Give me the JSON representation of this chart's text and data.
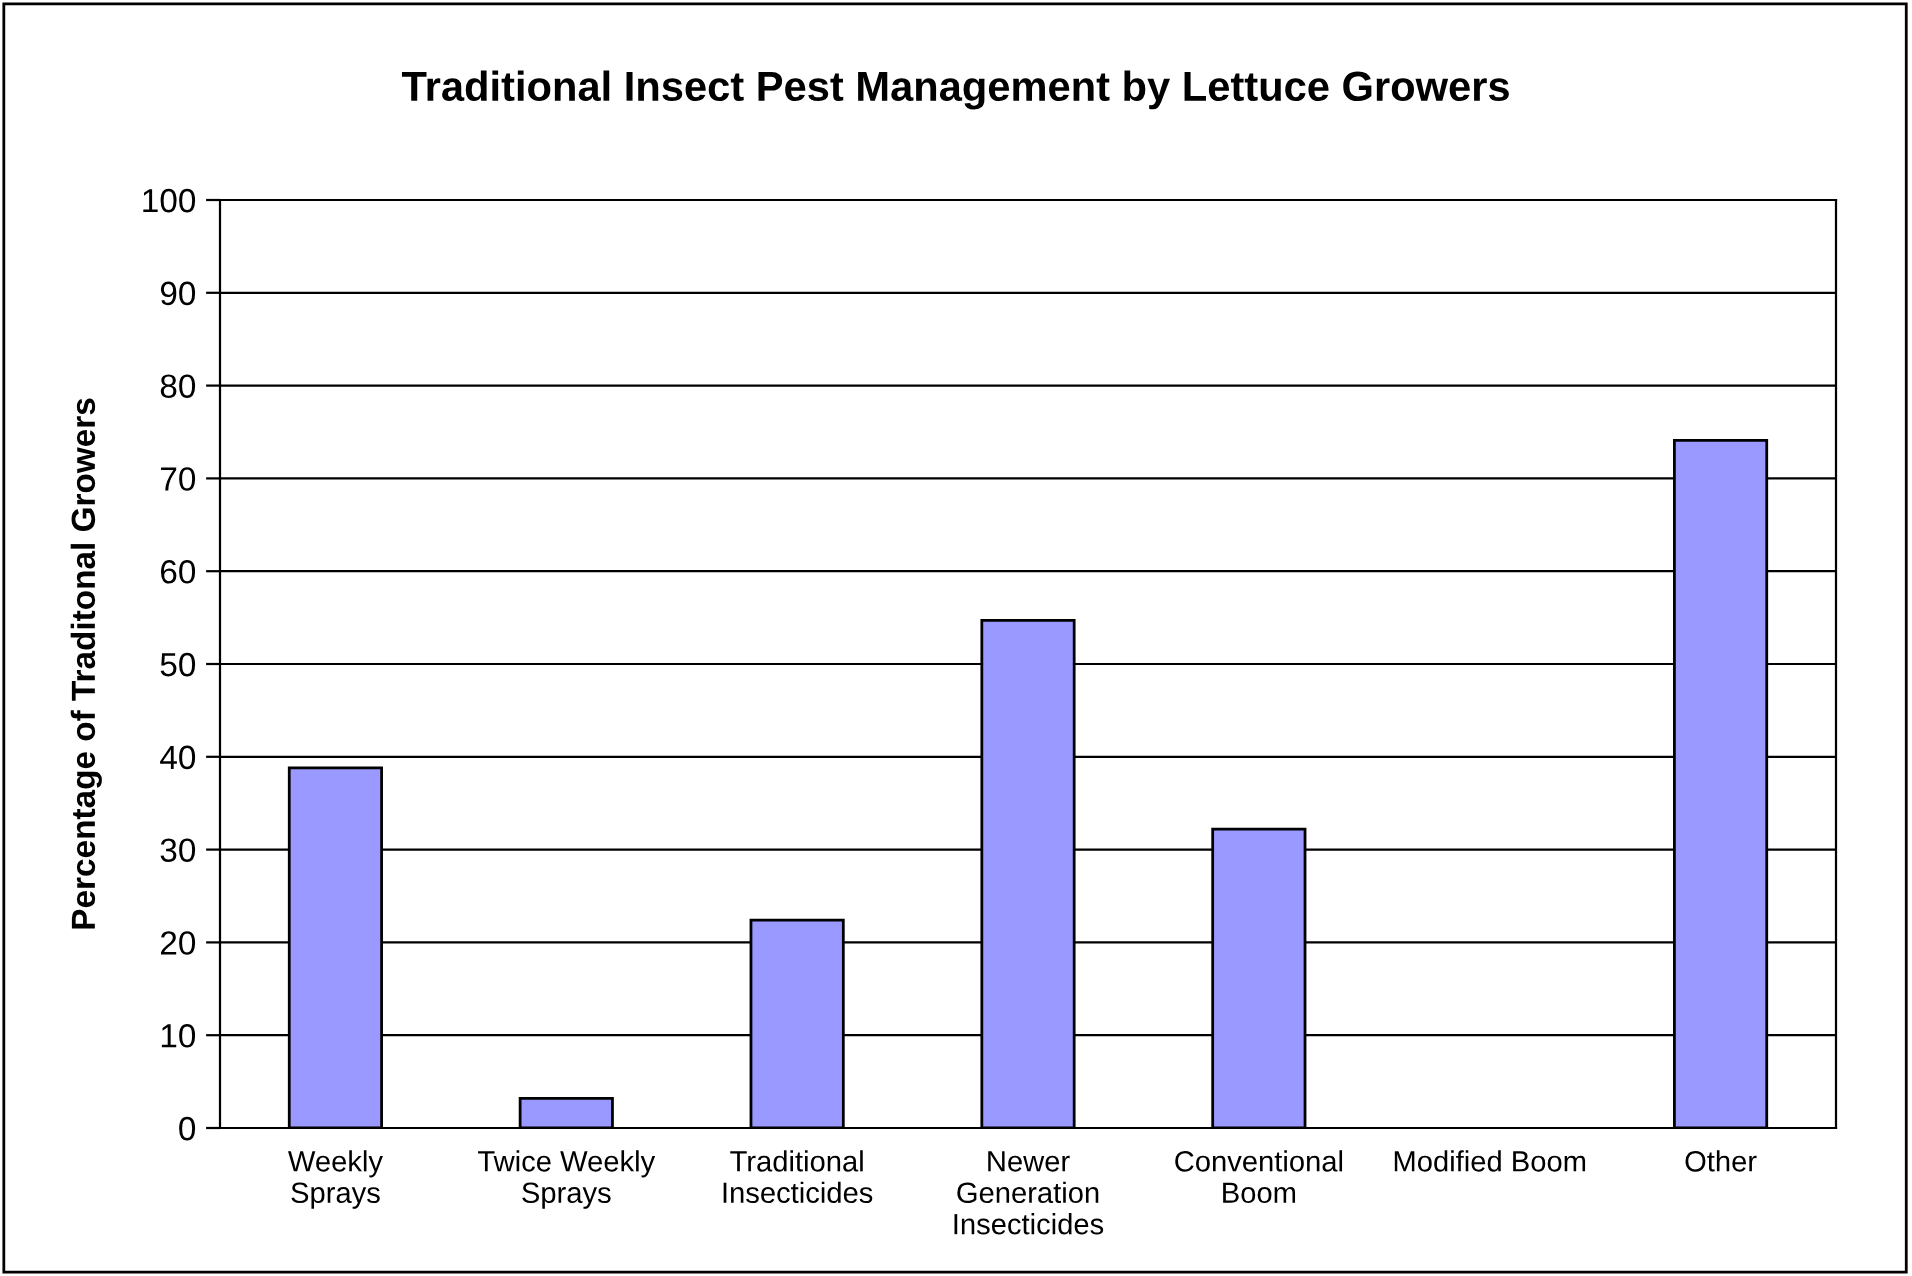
{
  "chart_data": {
    "type": "bar",
    "title": "Traditional Insect Pest Management by Lettuce Growers",
    "ylabel": "Percentage of Traditonal Growers",
    "categories": [
      "Weekly\nSprays",
      "Twice Weekly\nSprays",
      "Traditional\nInsecticides",
      "Newer\nGeneration\nInsecticides",
      "Conventional\nBoom",
      "Modified Boom",
      "Other"
    ],
    "values": [
      38.8,
      3.2,
      22.4,
      54.7,
      32.2,
      0,
      74.1
    ],
    "color": "#9999ff",
    "ylim": [
      0,
      100
    ],
    "yticks": [
      0,
      10,
      20,
      30,
      40,
      50,
      60,
      70,
      80,
      90,
      100
    ],
    "grid": "y",
    "legend": false
  }
}
